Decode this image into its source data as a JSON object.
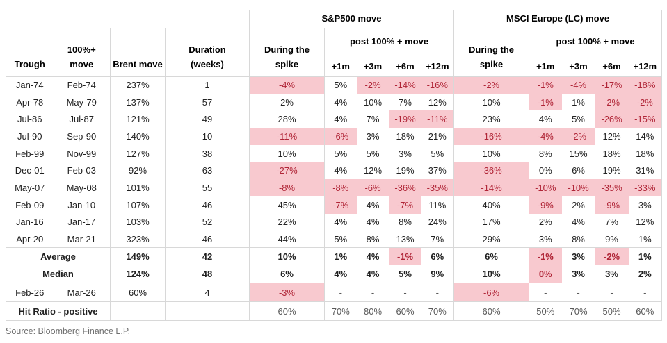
{
  "table": {
    "group_headers": {
      "sp": "S&P500 move",
      "msci": "MSCI Europe (LC) move"
    },
    "headers": {
      "trough": "Trough",
      "peak": "100%+ move",
      "brent": "Brent move",
      "duration": "Duration (weeks)",
      "during_spike": "During the spike",
      "post_move": "post 100% + move",
      "post_cols": [
        "+1m",
        "+3m",
        "+6m",
        "+12m"
      ]
    },
    "rows": [
      {
        "trough": "Jan-74",
        "peak": "Feb-74",
        "brent": "237%",
        "duration": "1",
        "sp": [
          "-4%",
          "5%",
          "-2%",
          "-14%",
          "-16%"
        ],
        "msci": [
          "-2%",
          "-1%",
          "-4%",
          "-17%",
          "-18%"
        ]
      },
      {
        "trough": "Apr-78",
        "peak": "May-79",
        "brent": "137%",
        "duration": "57",
        "sp": [
          "2%",
          "4%",
          "10%",
          "7%",
          "12%"
        ],
        "msci": [
          "10%",
          "-1%",
          "1%",
          "-2%",
          "-2%"
        ]
      },
      {
        "trough": "Jul-86",
        "peak": "Jul-87",
        "brent": "121%",
        "duration": "49",
        "sp": [
          "28%",
          "4%",
          "7%",
          "-19%",
          "-11%"
        ],
        "msci": [
          "23%",
          "4%",
          "5%",
          "-26%",
          "-15%"
        ]
      },
      {
        "trough": "Jul-90",
        "peak": "Sep-90",
        "brent": "140%",
        "duration": "10",
        "sp": [
          "-11%",
          "-6%",
          "3%",
          "18%",
          "21%"
        ],
        "msci": [
          "-16%",
          "-4%",
          "-2%",
          "12%",
          "14%"
        ]
      },
      {
        "trough": "Feb-99",
        "peak": "Nov-99",
        "brent": "127%",
        "duration": "38",
        "sp": [
          "10%",
          "5%",
          "5%",
          "3%",
          "5%"
        ],
        "msci": [
          "10%",
          "8%",
          "15%",
          "18%",
          "18%"
        ]
      },
      {
        "trough": "Dec-01",
        "peak": "Feb-03",
        "brent": "92%",
        "duration": "63",
        "sp": [
          "-27%",
          "4%",
          "12%",
          "19%",
          "37%"
        ],
        "msci": [
          "-36%",
          "0%",
          "6%",
          "19%",
          "31%"
        ]
      },
      {
        "trough": "May-07",
        "peak": "May-08",
        "brent": "101%",
        "duration": "55",
        "sp": [
          "-8%",
          "-8%",
          "-6%",
          "-36%",
          "-35%"
        ],
        "msci": [
          "-14%",
          "-10%",
          "-10%",
          "-35%",
          "-33%"
        ]
      },
      {
        "trough": "Feb-09",
        "peak": "Jan-10",
        "brent": "107%",
        "duration": "46",
        "sp": [
          "45%",
          "-7%",
          "4%",
          "-7%",
          "11%"
        ],
        "msci": [
          "40%",
          "-9%",
          "2%",
          "-9%",
          "3%"
        ]
      },
      {
        "trough": "Jan-16",
        "peak": "Jan-17",
        "brent": "103%",
        "duration": "52",
        "sp": [
          "22%",
          "4%",
          "4%",
          "8%",
          "24%"
        ],
        "msci": [
          "17%",
          "2%",
          "4%",
          "7%",
          "12%"
        ]
      },
      {
        "trough": "Apr-20",
        "peak": "Mar-21",
        "brent": "323%",
        "duration": "46",
        "sp": [
          "44%",
          "5%",
          "8%",
          "13%",
          "7%"
        ],
        "msci": [
          "29%",
          "3%",
          "8%",
          "9%",
          "1%"
        ]
      }
    ],
    "summary": [
      {
        "label": "Average",
        "brent": "149%",
        "duration": "42",
        "sp": [
          "10%",
          "1%",
          "4%",
          "-1%",
          "6%"
        ],
        "msci": [
          "6%",
          "-1%",
          "3%",
          "-2%",
          "1%"
        ]
      },
      {
        "label": "Median",
        "brent": "124%",
        "duration": "48",
        "sp": [
          "6%",
          "4%",
          "4%",
          "5%",
          "9%"
        ],
        "msci": [
          "10%",
          "0%",
          "3%",
          "3%",
          "2%"
        ],
        "extra_highlight": {
          "group": "msci",
          "index": 1
        }
      }
    ],
    "current_row": {
      "trough": "Feb-26",
      "peak": "Mar-26",
      "brent": "60%",
      "duration": "4",
      "sp": [
        "-3%",
        "-",
        "-",
        "-",
        "-"
      ],
      "msci": [
        "-6%",
        "-",
        "-",
        "-",
        "-"
      ]
    },
    "hit_ratio": {
      "label": "Hit Ratio - positive",
      "sp": [
        "60%",
        "70%",
        "80%",
        "60%",
        "70%"
      ],
      "msci": [
        "60%",
        "50%",
        "70%",
        "50%",
        "60%"
      ]
    }
  },
  "source": "Source: Bloomberg Finance L.P.",
  "colors": {
    "highlight_bg": "#f8c9cf",
    "highlight_text": "#b02537"
  }
}
